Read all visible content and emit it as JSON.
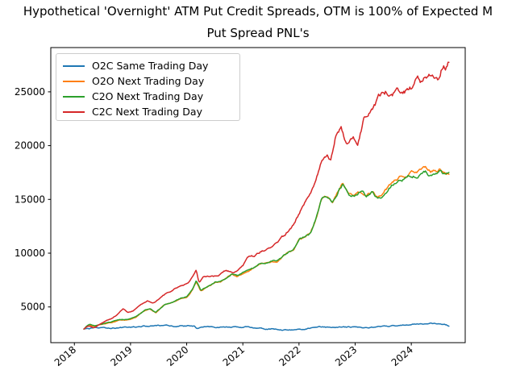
{
  "chart_data": {
    "type": "line",
    "title_line1": "Hypothetical 'Overnight' ATM Put Credit Spreads, OTM is 100% of Expected M",
    "title_line2": "Put Spread PNL's",
    "xlabel": "",
    "ylabel": "",
    "grid": false,
    "legend_position": "upper left",
    "background": "#ffffff",
    "axis_color": "#000000",
    "xlim": [
      2017.58,
      2024.96
    ],
    "ylim": [
      1680,
      29115
    ],
    "x_ticks": [
      "2018",
      "2019",
      "2020",
      "2021",
      "2022",
      "2023",
      "2024"
    ],
    "x_tick_values": [
      2018,
      2019,
      2020,
      2021,
      2022,
      2023,
      2024
    ],
    "y_ticks": [
      "5000",
      "10000",
      "15000",
      "20000",
      "25000"
    ],
    "y_tick_values": [
      5000,
      10000,
      15000,
      20000,
      25000
    ],
    "series": [
      {
        "name": "O2C Same Trading Day",
        "color": "#1f77b4",
        "noise": 300,
        "points": [
          [
            2018.17,
            2950
          ],
          [
            2018.3,
            3000
          ],
          [
            2018.5,
            3030
          ],
          [
            2018.75,
            3060
          ],
          [
            2019.0,
            3130
          ],
          [
            2019.25,
            3210
          ],
          [
            2019.5,
            3250
          ],
          [
            2019.75,
            3210
          ],
          [
            2020.0,
            3240
          ],
          [
            2020.14,
            3250
          ],
          [
            2020.18,
            3030
          ],
          [
            2020.35,
            3110
          ],
          [
            2020.6,
            3130
          ],
          [
            2020.9,
            3110
          ],
          [
            2021.1,
            3120
          ],
          [
            2021.3,
            3050
          ],
          [
            2021.5,
            2960
          ],
          [
            2021.7,
            2900
          ],
          [
            2021.9,
            2860
          ],
          [
            2022.05,
            2890
          ],
          [
            2022.2,
            3050
          ],
          [
            2022.35,
            3120
          ],
          [
            2022.55,
            3100
          ],
          [
            2022.75,
            3090
          ],
          [
            2022.95,
            3130
          ],
          [
            2023.15,
            3100
          ],
          [
            2023.35,
            3130
          ],
          [
            2023.55,
            3170
          ],
          [
            2023.75,
            3270
          ],
          [
            2023.9,
            3360
          ],
          [
            2024.05,
            3400
          ],
          [
            2024.2,
            3430
          ],
          [
            2024.35,
            3460
          ],
          [
            2024.5,
            3430
          ],
          [
            2024.6,
            3390
          ],
          [
            2024.67,
            3230
          ]
        ]
      },
      {
        "name": "O2O Next Trading Day",
        "color": "#ff7f0e",
        "noise": 180,
        "points": [
          [
            2018.17,
            2950
          ],
          [
            2018.26,
            3350
          ],
          [
            2018.36,
            3200
          ],
          [
            2018.5,
            3400
          ],
          [
            2018.65,
            3550
          ],
          [
            2018.8,
            3750
          ],
          [
            2018.95,
            3800
          ],
          [
            2019.1,
            4050
          ],
          [
            2019.25,
            4650
          ],
          [
            2019.35,
            4800
          ],
          [
            2019.45,
            4450
          ],
          [
            2019.6,
            5150
          ],
          [
            2019.75,
            5400
          ],
          [
            2019.9,
            5750
          ],
          [
            2020.0,
            5900
          ],
          [
            2020.1,
            6550
          ],
          [
            2020.17,
            7350
          ],
          [
            2020.25,
            6450
          ],
          [
            2020.4,
            6950
          ],
          [
            2020.5,
            7250
          ],
          [
            2020.6,
            7350
          ],
          [
            2020.7,
            7650
          ],
          [
            2020.8,
            8050
          ],
          [
            2020.9,
            7850
          ],
          [
            2021.0,
            8150
          ],
          [
            2021.15,
            8450
          ],
          [
            2021.3,
            8950
          ],
          [
            2021.45,
            9150
          ],
          [
            2021.6,
            9250
          ],
          [
            2021.75,
            9850
          ],
          [
            2021.9,
            10200
          ],
          [
            2022.0,
            11200
          ],
          [
            2022.1,
            11450
          ],
          [
            2022.2,
            11750
          ],
          [
            2022.3,
            13150
          ],
          [
            2022.4,
            14950
          ],
          [
            2022.5,
            15250
          ],
          [
            2022.6,
            14650
          ],
          [
            2022.7,
            15750
          ],
          [
            2022.78,
            16350
          ],
          [
            2022.9,
            15450
          ],
          [
            2023.0,
            15350
          ],
          [
            2023.1,
            15750
          ],
          [
            2023.2,
            15350
          ],
          [
            2023.3,
            15700
          ],
          [
            2023.4,
            15200
          ],
          [
            2023.5,
            15450
          ],
          [
            2023.65,
            16550
          ],
          [
            2023.8,
            17150
          ],
          [
            2023.95,
            17450
          ],
          [
            2024.1,
            17700
          ],
          [
            2024.25,
            17950
          ],
          [
            2024.35,
            17650
          ],
          [
            2024.5,
            17850
          ],
          [
            2024.6,
            17450
          ],
          [
            2024.67,
            17400
          ]
        ]
      },
      {
        "name": "C2O Next Trading Day",
        "color": "#2ca02c",
        "noise": 180,
        "points": [
          [
            2018.17,
            2950
          ],
          [
            2018.26,
            3400
          ],
          [
            2018.36,
            3250
          ],
          [
            2018.5,
            3450
          ],
          [
            2018.65,
            3600
          ],
          [
            2018.8,
            3800
          ],
          [
            2018.95,
            3850
          ],
          [
            2019.1,
            4100
          ],
          [
            2019.25,
            4700
          ],
          [
            2019.35,
            4850
          ],
          [
            2019.45,
            4500
          ],
          [
            2019.6,
            5200
          ],
          [
            2019.75,
            5450
          ],
          [
            2019.9,
            5800
          ],
          [
            2020.0,
            5950
          ],
          [
            2020.1,
            6600
          ],
          [
            2020.17,
            7400
          ],
          [
            2020.25,
            6500
          ],
          [
            2020.4,
            7000
          ],
          [
            2020.5,
            7300
          ],
          [
            2020.6,
            7400
          ],
          [
            2020.7,
            7700
          ],
          [
            2020.8,
            8100
          ],
          [
            2020.9,
            7900
          ],
          [
            2021.0,
            8200
          ],
          [
            2021.15,
            8500
          ],
          [
            2021.3,
            9000
          ],
          [
            2021.45,
            9200
          ],
          [
            2021.6,
            9300
          ],
          [
            2021.75,
            9900
          ],
          [
            2021.9,
            10300
          ],
          [
            2022.0,
            11300
          ],
          [
            2022.1,
            11500
          ],
          [
            2022.2,
            11800
          ],
          [
            2022.3,
            13200
          ],
          [
            2022.4,
            15000
          ],
          [
            2022.5,
            15300
          ],
          [
            2022.6,
            14700
          ],
          [
            2022.7,
            15800
          ],
          [
            2022.78,
            16400
          ],
          [
            2022.9,
            15500
          ],
          [
            2023.0,
            15400
          ],
          [
            2023.1,
            15800
          ],
          [
            2023.2,
            15300
          ],
          [
            2023.3,
            15600
          ],
          [
            2023.4,
            15100
          ],
          [
            2023.5,
            15300
          ],
          [
            2023.65,
            16300
          ],
          [
            2023.8,
            16800
          ],
          [
            2023.95,
            17100
          ],
          [
            2024.1,
            17300
          ],
          [
            2024.25,
            17550
          ],
          [
            2024.35,
            17250
          ],
          [
            2024.5,
            17500
          ],
          [
            2024.6,
            17200
          ],
          [
            2024.67,
            17250
          ]
        ]
      },
      {
        "name": "C2C Next Trading Day",
        "color": "#d62728",
        "noise": 220,
        "points": [
          [
            2018.17,
            2950
          ],
          [
            2018.25,
            3200
          ],
          [
            2018.35,
            3100
          ],
          [
            2018.45,
            3400
          ],
          [
            2018.6,
            3800
          ],
          [
            2018.75,
            4200
          ],
          [
            2018.87,
            4850
          ],
          [
            2018.95,
            4500
          ],
          [
            2019.05,
            4650
          ],
          [
            2019.15,
            5150
          ],
          [
            2019.3,
            5600
          ],
          [
            2019.4,
            5350
          ],
          [
            2019.5,
            5700
          ],
          [
            2019.65,
            6300
          ],
          [
            2019.8,
            6750
          ],
          [
            2019.95,
            7050
          ],
          [
            2020.05,
            7400
          ],
          [
            2020.17,
            8400
          ],
          [
            2020.22,
            7200
          ],
          [
            2020.3,
            7800
          ],
          [
            2020.45,
            7900
          ],
          [
            2020.55,
            7800
          ],
          [
            2020.7,
            8400
          ],
          [
            2020.8,
            8200
          ],
          [
            2020.9,
            8300
          ],
          [
            2021.0,
            8800
          ],
          [
            2021.1,
            9600
          ],
          [
            2021.2,
            9700
          ],
          [
            2021.3,
            10100
          ],
          [
            2021.45,
            10500
          ],
          [
            2021.6,
            10900
          ],
          [
            2021.75,
            11600
          ],
          [
            2021.9,
            12600
          ],
          [
            2022.0,
            13700
          ],
          [
            2022.1,
            14600
          ],
          [
            2022.2,
            15500
          ],
          [
            2022.3,
            16600
          ],
          [
            2022.4,
            18300
          ],
          [
            2022.5,
            18900
          ],
          [
            2022.56,
            18400
          ],
          [
            2022.65,
            20800
          ],
          [
            2022.75,
            21400
          ],
          [
            2022.85,
            20000
          ],
          [
            2022.95,
            20900
          ],
          [
            2023.05,
            20400
          ],
          [
            2023.15,
            22300
          ],
          [
            2023.3,
            23300
          ],
          [
            2023.45,
            24700
          ],
          [
            2023.55,
            25000
          ],
          [
            2023.65,
            24800
          ],
          [
            2023.75,
            25100
          ],
          [
            2023.85,
            24700
          ],
          [
            2023.95,
            25200
          ],
          [
            2024.05,
            25500
          ],
          [
            2024.12,
            26300
          ],
          [
            2024.2,
            25800
          ],
          [
            2024.3,
            26600
          ],
          [
            2024.4,
            26800
          ],
          [
            2024.47,
            26300
          ],
          [
            2024.55,
            27500
          ],
          [
            2024.62,
            27400
          ],
          [
            2024.67,
            28000
          ]
        ]
      }
    ]
  }
}
